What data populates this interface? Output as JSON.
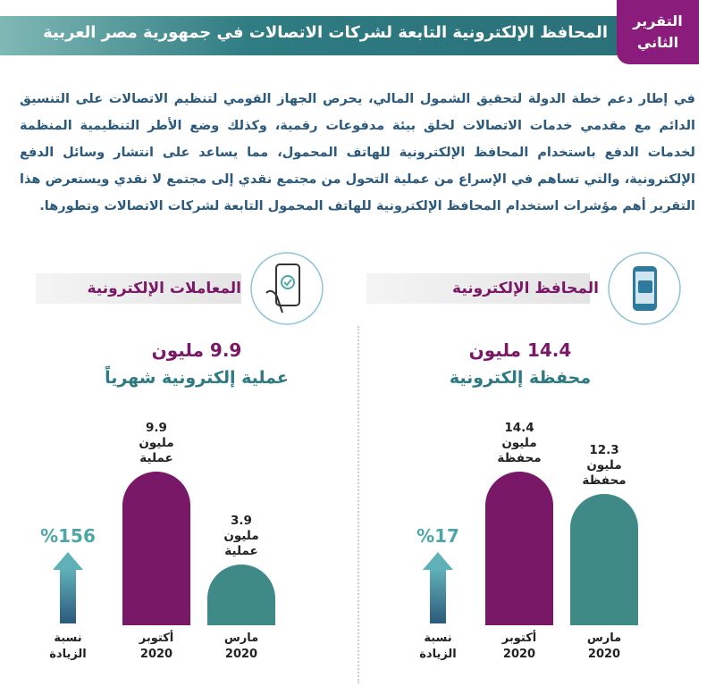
{
  "header": {
    "title": "المحافظ الإلكترونية التابعة لشركات الاتصالات في جمهورية مصر العربية",
    "badge": [
      "التقرير",
      "الثاني"
    ]
  },
  "intro": "في إطار دعم خطة الدولة لتحقيق الشمول المالي، يحرص الجهاز القومي لتنظيم الاتصالات على التنسيق الدائم مع مقدمي خدمات الاتصالات لخلق بيئة مدفوعات رقمية، وكذلك وضع الأطر التنظيمية المنظمة لخدمات الدفع باستخدام المحافظ الإلكترونية للهاتف المحمول، مما يساعد على انتشار وسائل الدفع الإلكترونية، والتي تساهم في الإسراع من عملية التحول من مجتمع نقدي إلى مجتمع لا نقدي ويستعرض هذا التقرير أهم مؤشرات استخدام المحافظ الإلكترونية للهاتف المحمول التابعة لشركات الاتصالات وتطورها.",
  "chart_data": [
    {
      "type": "bar",
      "title": "المحافظ الإلكترونية",
      "headline": "14.4 مليون",
      "subtitle": "محفظة إلكترونية",
      "categories": [
        "مارس 2020",
        "أكتوبر 2020"
      ],
      "values": [
        12.3,
        14.4
      ],
      "value_labels": [
        "12.3 مليون محفظة",
        "14.4 مليون محفظة"
      ],
      "colors": [
        "#3f8a87",
        "#7a1868"
      ],
      "growth": {
        "value": 17,
        "label": "%17",
        "caption": "نسبة الزيادة"
      }
    },
    {
      "type": "bar",
      "title": "المعاملات الإلكترونية",
      "headline": "9.9 مليون",
      "subtitle": "عملية إلكترونية شهرياً",
      "categories": [
        "مارس 2020",
        "أكتوبر 2020"
      ],
      "values": [
        3.9,
        9.9
      ],
      "value_labels": [
        "3.9 مليون عملية",
        "9.9 مليون عملية"
      ],
      "colors": [
        "#3f8a87",
        "#7a1868"
      ],
      "growth": {
        "value": 156,
        "label": "%156",
        "caption": "نسبة الزيادة"
      }
    }
  ]
}
